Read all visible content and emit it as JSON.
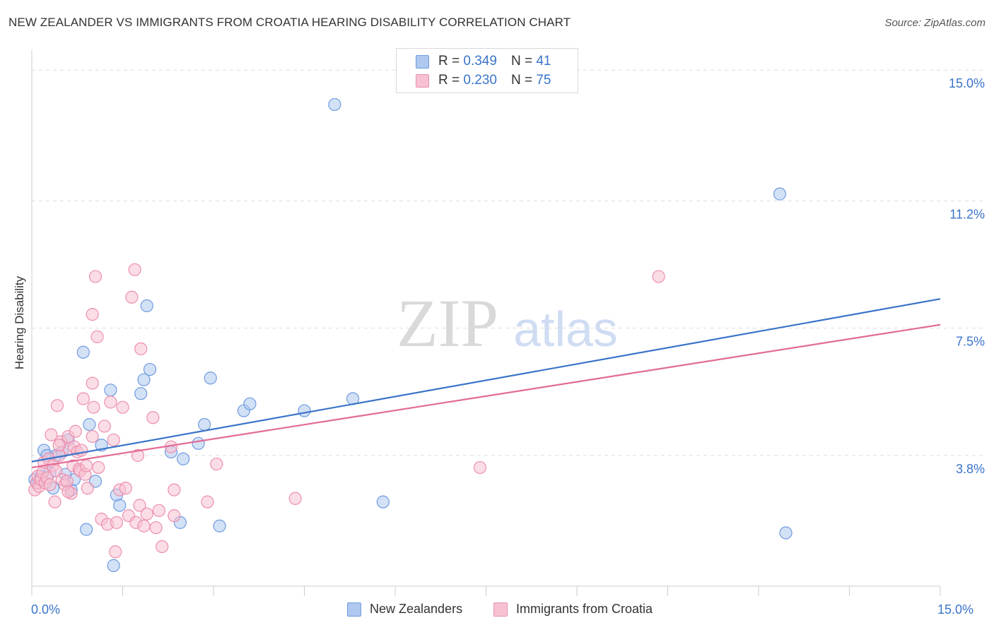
{
  "header": {
    "title": "NEW ZEALANDER VS IMMIGRANTS FROM CROATIA HEARING DISABILITY CORRELATION CHART",
    "source": "Source: ZipAtlas.com"
  },
  "watermark": {
    "zip": "ZIP",
    "atlas": "atlas"
  },
  "legend_top": {
    "rows": [
      {
        "r_label": "R =",
        "r_value": "0.349",
        "n_label": "N =",
        "n_value": "41",
        "fill": "#aec8ef",
        "stroke": "#6f9be0"
      },
      {
        "r_label": "R =",
        "r_value": "0.230",
        "n_label": "N =",
        "n_value": "75",
        "fill": "#f7c1d2",
        "stroke": "#ec8fae"
      }
    ]
  },
  "legend_bottom": {
    "items": [
      {
        "label": "New Zealanders",
        "fill": "#aec8ef",
        "stroke": "#6f9be0"
      },
      {
        "label": "Immigrants from Croatia",
        "fill": "#f7c1d2",
        "stroke": "#ec8fae"
      }
    ]
  },
  "chart_data": {
    "type": "scatter",
    "title": "NEW ZEALANDER VS IMMIGRANTS FROM CROATIA HEARING DISABILITY CORRELATION CHART",
    "xlabel": "",
    "ylabel": "Hearing Disability",
    "xlim": [
      0,
      15
    ],
    "ylim": [
      0,
      15.6
    ],
    "x_tick_labels": [
      "0.0%",
      "15.0%"
    ],
    "y_tick_labels": [
      "3.8%",
      "7.5%",
      "11.2%",
      "15.0%"
    ],
    "y_tick_values": [
      3.8,
      7.5,
      11.2,
      15.0
    ],
    "grid": "horizontal dashed",
    "colors": {
      "blue": "#3a74c9",
      "pink": "#e26a96",
      "blue_fill": "#aec8ef",
      "pink_fill": "#f7c1d2"
    },
    "series": [
      {
        "name": "New Zealanders",
        "color": "#3a74c9",
        "trend": {
          "x": [
            0,
            15
          ],
          "y": [
            3.62,
            8.35
          ]
        },
        "points": [
          [
            0.05,
            3.1
          ],
          [
            0.1,
            3.0
          ],
          [
            0.15,
            3.2
          ],
          [
            0.2,
            3.95
          ],
          [
            0.25,
            3.8
          ],
          [
            0.3,
            3.3
          ],
          [
            0.35,
            2.85
          ],
          [
            0.4,
            3.8
          ],
          [
            0.5,
            3.9
          ],
          [
            0.6,
            4.25
          ],
          [
            0.65,
            2.8
          ],
          [
            0.7,
            3.1
          ],
          [
            0.85,
            6.8
          ],
          [
            0.9,
            1.65
          ],
          [
            0.95,
            4.7
          ],
          [
            1.05,
            3.05
          ],
          [
            1.15,
            4.1
          ],
          [
            1.3,
            5.7
          ],
          [
            1.35,
            0.6
          ],
          [
            1.4,
            2.65
          ],
          [
            1.45,
            2.35
          ],
          [
            1.8,
            5.6
          ],
          [
            1.85,
            6.0
          ],
          [
            1.9,
            8.15
          ],
          [
            1.95,
            6.3
          ],
          [
            2.3,
            3.9
          ],
          [
            2.45,
            1.85
          ],
          [
            2.5,
            3.7
          ],
          [
            2.75,
            4.15
          ],
          [
            2.85,
            4.7
          ],
          [
            2.95,
            6.05
          ],
          [
            3.1,
            1.75
          ],
          [
            3.5,
            5.1
          ],
          [
            3.6,
            5.3
          ],
          [
            4.5,
            5.1
          ],
          [
            5.0,
            14.0
          ],
          [
            5.3,
            5.45
          ],
          [
            5.8,
            2.45
          ],
          [
            12.35,
            11.4
          ],
          [
            12.45,
            1.55
          ],
          [
            0.55,
            3.25
          ]
        ]
      },
      {
        "name": "Immigrants from Croatia",
        "color": "#e26a96",
        "trend": {
          "x": [
            0,
            15
          ],
          "y": [
            3.45,
            7.6
          ]
        },
        "points": [
          [
            0.05,
            2.8
          ],
          [
            0.08,
            3.0
          ],
          [
            0.1,
            3.2
          ],
          [
            0.12,
            2.9
          ],
          [
            0.15,
            3.1
          ],
          [
            0.18,
            3.3
          ],
          [
            0.2,
            3.6
          ],
          [
            0.22,
            3.0
          ],
          [
            0.25,
            3.15
          ],
          [
            0.28,
            3.7
          ],
          [
            0.3,
            2.95
          ],
          [
            0.32,
            4.4
          ],
          [
            0.35,
            3.5
          ],
          [
            0.38,
            2.45
          ],
          [
            0.4,
            3.35
          ],
          [
            0.42,
            5.25
          ],
          [
            0.45,
            3.8
          ],
          [
            0.48,
            4.2
          ],
          [
            0.5,
            3.1
          ],
          [
            0.55,
            2.95
          ],
          [
            0.58,
            3.05
          ],
          [
            0.6,
            4.35
          ],
          [
            0.62,
            4.0
          ],
          [
            0.65,
            2.7
          ],
          [
            0.68,
            3.5
          ],
          [
            0.7,
            4.05
          ],
          [
            0.72,
            4.5
          ],
          [
            0.75,
            3.9
          ],
          [
            0.78,
            3.4
          ],
          [
            0.8,
            3.35
          ],
          [
            0.82,
            3.95
          ],
          [
            0.85,
            5.45
          ],
          [
            0.88,
            3.25
          ],
          [
            0.9,
            3.5
          ],
          [
            0.92,
            2.85
          ],
          [
            1.0,
            4.35
          ],
          [
            1.0,
            5.9
          ],
          [
            1.0,
            7.9
          ],
          [
            1.02,
            5.2
          ],
          [
            1.05,
            9.0
          ],
          [
            1.08,
            7.25
          ],
          [
            1.1,
            3.45
          ],
          [
            1.15,
            1.95
          ],
          [
            1.2,
            4.65
          ],
          [
            1.25,
            1.8
          ],
          [
            1.3,
            5.35
          ],
          [
            1.35,
            4.25
          ],
          [
            1.38,
            1.0
          ],
          [
            1.4,
            1.85
          ],
          [
            1.45,
            2.8
          ],
          [
            1.5,
            5.2
          ],
          [
            1.55,
            2.85
          ],
          [
            1.6,
            2.05
          ],
          [
            1.65,
            8.4
          ],
          [
            1.7,
            9.2
          ],
          [
            1.72,
            1.85
          ],
          [
            1.75,
            3.8
          ],
          [
            1.78,
            2.35
          ],
          [
            1.8,
            6.9
          ],
          [
            1.85,
            1.75
          ],
          [
            1.9,
            2.1
          ],
          [
            2.0,
            4.9
          ],
          [
            2.05,
            1.7
          ],
          [
            2.1,
            2.2
          ],
          [
            2.15,
            1.15
          ],
          [
            2.3,
            4.05
          ],
          [
            2.35,
            2.05
          ],
          [
            2.35,
            2.8
          ],
          [
            2.9,
            2.45
          ],
          [
            3.05,
            3.55
          ],
          [
            4.35,
            2.55
          ],
          [
            7.4,
            3.45
          ],
          [
            10.35,
            9.0
          ],
          [
            0.6,
            2.75
          ],
          [
            0.45,
            4.1
          ]
        ]
      }
    ]
  }
}
